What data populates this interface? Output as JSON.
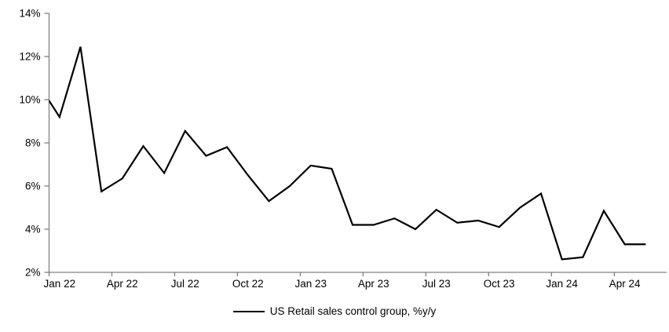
{
  "chart_data": {
    "type": "line",
    "title": "",
    "legend": "US Retail sales control group, %y/y",
    "legend_position": "bottom",
    "line_color": "#000000",
    "axis_color": "#808080",
    "tick_label_color": "#000000",
    "background": "#ffffff",
    "grid": false,
    "ylim": [
      2,
      14
    ],
    "y_ticks": [
      2,
      4,
      6,
      8,
      10,
      12,
      14
    ],
    "y_tick_suffix": "%",
    "categories": [
      "Jan 22",
      "Feb 22",
      "Mar 22",
      "Apr 22",
      "May 22",
      "Jun 22",
      "Jul 22",
      "Aug 22",
      "Sep 22",
      "Oct 22",
      "Nov 22",
      "Dec 22",
      "Jan 23",
      "Feb 23",
      "Mar 23",
      "Apr 23",
      "May 23",
      "Jun 23",
      "Jul 23",
      "Aug 23",
      "Sep 23",
      "Oct 23",
      "Nov 23",
      "Dec 23",
      "Jan 24",
      "Feb 24",
      "Mar 24",
      "Apr 24",
      "May 24"
    ],
    "values": [
      9.2,
      12.45,
      5.75,
      6.35,
      7.85,
      6.6,
      8.55,
      7.4,
      7.8,
      6.5,
      5.3,
      6.0,
      6.95,
      6.8,
      4.2,
      4.2,
      4.5,
      4.0,
      4.9,
      4.3,
      4.4,
      4.1,
      5.0,
      5.65,
      2.6,
      2.7,
      4.85,
      3.3,
      3.3
    ],
    "pre_point": {
      "label": "Dec 21",
      "value": 10.7
    },
    "x_tick_labels": [
      "Jan 22",
      "Apr 22",
      "Jul 22",
      "Oct 22",
      "Jan 23",
      "Apr 23",
      "Jul 23",
      "Oct 23",
      "Jan 24",
      "Apr 24"
    ],
    "x_tick_indices": [
      0,
      3,
      6,
      9,
      12,
      15,
      18,
      21,
      24,
      27
    ]
  }
}
